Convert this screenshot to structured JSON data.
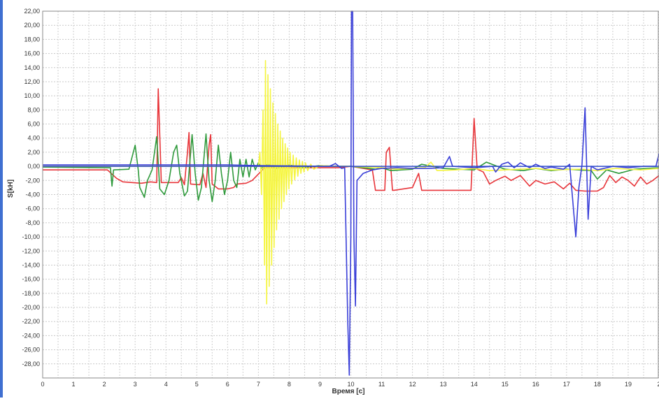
{
  "chart_data": {
    "type": "line",
    "title": "",
    "xlabel": "Время [с]",
    "ylabel": "S[kH]",
    "xlim": [
      0,
      20
    ],
    "ylim": [
      -30,
      22
    ],
    "grid": true,
    "x_ticks": [
      "0",
      "1",
      "2",
      "3",
      "4",
      "5",
      "6",
      "7",
      "8",
      "9",
      "10",
      "11",
      "12",
      "13",
      "14",
      "15",
      "16",
      "17",
      "18",
      "19",
      "2"
    ],
    "y_ticks": [
      "22,00",
      "20,00",
      "18,00",
      "16,00",
      "14,00",
      "12,00",
      "10,00",
      "8,00",
      "6,00",
      "4,00",
      "2,00",
      "0,00",
      "-2,00",
      "-4,00",
      "-6,00",
      "-8,00",
      "-10,00",
      "-12,00",
      "-14,00",
      "-16,00",
      "-18,00",
      "-20,00",
      "-22,00",
      "-24,00",
      "-26,00",
      "-28,00"
    ],
    "series": [
      {
        "color": "#e8353a",
        "points": [
          [
            0,
            -0.5
          ],
          [
            2.1,
            -0.5
          ],
          [
            2.4,
            -1.7
          ],
          [
            2.6,
            -2.2
          ],
          [
            3.2,
            -2.4
          ],
          [
            3.5,
            -2.2
          ],
          [
            3.7,
            -2.3
          ],
          [
            3.75,
            11
          ],
          [
            3.85,
            -2.3
          ],
          [
            4.4,
            -2.3
          ],
          [
            4.5,
            -1.6
          ],
          [
            4.6,
            -2.6
          ],
          [
            4.7,
            2
          ],
          [
            4.75,
            4.8
          ],
          [
            4.8,
            -2.5
          ],
          [
            5.1,
            -2.6
          ],
          [
            5.2,
            -1
          ],
          [
            5.3,
            -3
          ],
          [
            5.4,
            3
          ],
          [
            5.45,
            4.5
          ],
          [
            5.5,
            -2.5
          ],
          [
            5.7,
            -3.2
          ],
          [
            6,
            -3.2
          ],
          [
            6.2,
            -3
          ],
          [
            6.3,
            -2.5
          ],
          [
            6.6,
            -2.4
          ],
          [
            6.8,
            -2
          ],
          [
            7.2,
            -0.2
          ],
          [
            9.6,
            -0.2
          ],
          [
            10,
            0
          ],
          [
            10.7,
            -0.5
          ],
          [
            10.8,
            -3.4
          ],
          [
            11.1,
            -3.4
          ],
          [
            11.15,
            2
          ],
          [
            11.25,
            2.7
          ],
          [
            11.35,
            -3.4
          ],
          [
            11.4,
            -3.4
          ],
          [
            12,
            -3
          ],
          [
            12.2,
            -1
          ],
          [
            12.3,
            -3.4
          ],
          [
            13.5,
            -3.4
          ],
          [
            13.9,
            -3.4
          ],
          [
            14,
            6.8
          ],
          [
            14.1,
            -0.4
          ],
          [
            14.3,
            -0.8
          ],
          [
            14.5,
            -2.5
          ],
          [
            14.7,
            -2
          ],
          [
            15,
            -1.4
          ],
          [
            15.2,
            -2
          ],
          [
            15.5,
            -1.3
          ],
          [
            15.8,
            -2.8
          ],
          [
            16,
            -2
          ],
          [
            16.3,
            -2.5
          ],
          [
            16.6,
            -2.2
          ],
          [
            16.9,
            -3.2
          ],
          [
            17.1,
            -2.4
          ],
          [
            17.3,
            -3.4
          ],
          [
            17.6,
            -3.5
          ],
          [
            18,
            -3.5
          ],
          [
            18.2,
            -3
          ],
          [
            18.4,
            -1.3
          ],
          [
            18.6,
            -2.3
          ],
          [
            18.8,
            -1.5
          ],
          [
            19,
            -2
          ],
          [
            19.2,
            -2.8
          ],
          [
            19.4,
            -1.5
          ],
          [
            19.6,
            -2.5
          ],
          [
            19.8,
            -2
          ],
          [
            20,
            -1.3
          ]
        ]
      },
      {
        "color": "#2f9a3c",
        "points": [
          [
            0,
            -0.1
          ],
          [
            2.1,
            -0.2
          ],
          [
            2.2,
            -0.2
          ],
          [
            2.25,
            -2.8
          ],
          [
            2.3,
            -0.5
          ],
          [
            2.8,
            -0.4
          ],
          [
            3,
            3
          ],
          [
            3.1,
            -0.5
          ],
          [
            3.15,
            -3
          ],
          [
            3.3,
            -4.4
          ],
          [
            3.4,
            -2
          ],
          [
            3.55,
            -0.5
          ],
          [
            3.7,
            4.2
          ],
          [
            3.8,
            -3.2
          ],
          [
            3.95,
            -4
          ],
          [
            4.1,
            -2
          ],
          [
            4.25,
            2
          ],
          [
            4.35,
            3
          ],
          [
            4.45,
            -1
          ],
          [
            4.6,
            -4.2
          ],
          [
            4.7,
            -3.5
          ],
          [
            4.85,
            4.5
          ],
          [
            4.95,
            -1
          ],
          [
            5.05,
            -4.8
          ],
          [
            5.15,
            -3
          ],
          [
            5.3,
            4.6
          ],
          [
            5.4,
            -2
          ],
          [
            5.5,
            -5
          ],
          [
            5.6,
            -2
          ],
          [
            5.7,
            3
          ],
          [
            5.8,
            -1
          ],
          [
            5.9,
            -4
          ],
          [
            6,
            -2
          ],
          [
            6.1,
            2
          ],
          [
            6.2,
            -2
          ],
          [
            6.3,
            -3
          ],
          [
            6.4,
            1
          ],
          [
            6.5,
            -1.5
          ],
          [
            6.6,
            1
          ],
          [
            6.7,
            -1.5
          ],
          [
            6.8,
            1
          ],
          [
            6.9,
            -0.5
          ],
          [
            7,
            0.5
          ],
          [
            7.1,
            -0.3
          ],
          [
            7.3,
            0.3
          ],
          [
            7.6,
            -0.3
          ],
          [
            8,
            0.2
          ],
          [
            8.4,
            -0.2
          ],
          [
            9,
            0.1
          ],
          [
            9.5,
            0
          ],
          [
            10,
            0
          ],
          [
            10.8,
            -0.4
          ],
          [
            11,
            -0.2
          ],
          [
            11.3,
            -0.6
          ],
          [
            12,
            -0.4
          ],
          [
            12.3,
            0.3
          ],
          [
            13,
            -0.3
          ],
          [
            14,
            -0.5
          ],
          [
            14.4,
            0.6
          ],
          [
            15,
            -0.4
          ],
          [
            15.6,
            -0.6
          ],
          [
            16,
            -0.3
          ],
          [
            16.5,
            -0.6
          ],
          [
            17,
            -0.4
          ],
          [
            17.8,
            -0.6
          ],
          [
            18,
            -1.8
          ],
          [
            18.3,
            -0.5
          ],
          [
            18.7,
            -1
          ],
          [
            19.2,
            -0.4
          ],
          [
            20,
            -0.2
          ]
        ]
      },
      {
        "color": "#f5f542",
        "points": [
          [
            0,
            0
          ],
          [
            7,
            0
          ],
          [
            7.05,
            2
          ],
          [
            7.1,
            -4
          ],
          [
            7.15,
            8
          ],
          [
            7.2,
            -14
          ],
          [
            7.23,
            15
          ],
          [
            7.27,
            -19.5
          ],
          [
            7.31,
            13
          ],
          [
            7.35,
            -17
          ],
          [
            7.39,
            11
          ],
          [
            7.43,
            -14
          ],
          [
            7.47,
            9
          ],
          [
            7.51,
            -11.5
          ],
          [
            7.55,
            7.5
          ],
          [
            7.59,
            -9
          ],
          [
            7.63,
            6
          ],
          [
            7.67,
            -7.5
          ],
          [
            7.71,
            5
          ],
          [
            7.75,
            -6
          ],
          [
            7.79,
            4
          ],
          [
            7.83,
            -5
          ],
          [
            7.87,
            3.2
          ],
          [
            7.91,
            -4
          ],
          [
            7.95,
            2.6
          ],
          [
            7.99,
            -3.2
          ],
          [
            8.03,
            2
          ],
          [
            8.08,
            -2.5
          ],
          [
            8.13,
            1.6
          ],
          [
            8.18,
            -1.9
          ],
          [
            8.23,
            1.2
          ],
          [
            8.28,
            -1.4
          ],
          [
            8.33,
            0.9
          ],
          [
            8.38,
            -1
          ],
          [
            8.43,
            0.7
          ],
          [
            8.48,
            -0.8
          ],
          [
            8.53,
            0.5
          ],
          [
            8.6,
            -0.6
          ],
          [
            8.7,
            0.3
          ],
          [
            8.8,
            -0.4
          ],
          [
            9,
            0.1
          ],
          [
            9.5,
            0
          ],
          [
            10,
            0
          ],
          [
            11,
            -0.2
          ],
          [
            11.5,
            -0.4
          ],
          [
            12.4,
            -0.2
          ],
          [
            12.6,
            0.6
          ],
          [
            12.8,
            -0.6
          ],
          [
            13.4,
            -0.5
          ],
          [
            14,
            -0.3
          ],
          [
            14.5,
            -0.6
          ],
          [
            15.5,
            -0.4
          ],
          [
            16,
            -0.3
          ],
          [
            16.5,
            -0.5
          ],
          [
            17.5,
            -0.4
          ],
          [
            18,
            -0.6
          ],
          [
            18.6,
            -0.3
          ],
          [
            19.4,
            -0.5
          ],
          [
            20,
            -0.3
          ]
        ]
      },
      {
        "color": "#3a3fd8",
        "points": [
          [
            0,
            0.2
          ],
          [
            6,
            0.2
          ],
          [
            7,
            0.1
          ],
          [
            9.3,
            0
          ],
          [
            9.5,
            0.4
          ],
          [
            9.7,
            -0.3
          ],
          [
            9.8,
            -0.2
          ],
          [
            9.9,
            -22
          ],
          [
            9.95,
            -29.6
          ],
          [
            10.0,
            -10
          ],
          [
            10.02,
            22
          ],
          [
            10.06,
            22
          ],
          [
            10.1,
            -10
          ],
          [
            10.15,
            -19.8
          ],
          [
            10.2,
            -2
          ],
          [
            10.4,
            -1
          ],
          [
            10.7,
            -0.5
          ],
          [
            11,
            -0.3
          ],
          [
            11.5,
            -0.2
          ],
          [
            12,
            -0.3
          ],
          [
            12.5,
            -0.3
          ],
          [
            13,
            -0.2
          ],
          [
            13.2,
            1.4
          ],
          [
            13.3,
            0
          ],
          [
            14,
            -0.2
          ],
          [
            14.6,
            0
          ],
          [
            14.7,
            -0.8
          ],
          [
            14.9,
            0.3
          ],
          [
            15.1,
            0.6
          ],
          [
            15.3,
            -0.2
          ],
          [
            15.5,
            0.5
          ],
          [
            15.8,
            -0.2
          ],
          [
            16,
            0.3
          ],
          [
            16.3,
            -0.3
          ],
          [
            16.5,
            -0.1
          ],
          [
            16.9,
            -0.4
          ],
          [
            17.1,
            0.3
          ],
          [
            17.3,
            -10
          ],
          [
            17.4,
            -3
          ],
          [
            17.5,
            0.2
          ],
          [
            17.6,
            8.3
          ],
          [
            17.7,
            -7.5
          ],
          [
            17.8,
            0
          ],
          [
            18,
            -0.5
          ],
          [
            18.5,
            0
          ],
          [
            19,
            -0.2
          ],
          [
            19.5,
            0
          ],
          [
            19.9,
            0
          ],
          [
            20,
            1.8
          ]
        ]
      }
    ]
  }
}
